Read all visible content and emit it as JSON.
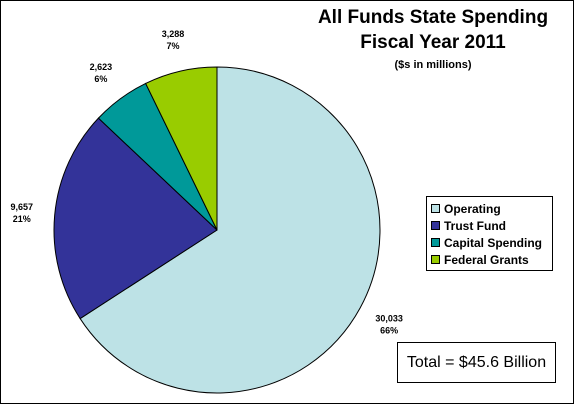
{
  "chart_data": {
    "type": "pie",
    "title": "All Funds State Spending",
    "title_line2": "Fiscal Year 2011",
    "subtitle": "($s in millions)",
    "slices": [
      {
        "name": "Operating",
        "value": 30033,
        "value_label": "30,033",
        "percent_label": "66%",
        "color": "#bde2e6"
      },
      {
        "name": "Trust Fund",
        "value": 9657,
        "value_label": "9,657",
        "percent_label": "21%",
        "color": "#333399"
      },
      {
        "name": "Capital Spending",
        "value": 2623,
        "value_label": "2,623",
        "percent_label": "6%",
        "color": "#009999"
      },
      {
        "name": "Federal Grants",
        "value": 3288,
        "value_label": "3,288",
        "percent_label": "7%",
        "color": "#99cc00"
      }
    ],
    "legend_placement": "right",
    "total_label": "Total = $45.6 Billion"
  }
}
